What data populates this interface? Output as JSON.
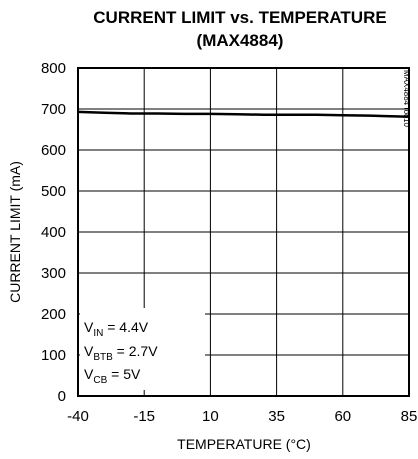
{
  "chart_data": {
    "type": "line",
    "title_line1": "CURRENT LIMIT vs. TEMPERATURE",
    "title_line2": "(MAX4884)",
    "xlabel": "TEMPERATURE (°C)",
    "ylabel": "CURRENT LIMIT (mA)",
    "xlim": [
      -40,
      85
    ],
    "ylim": [
      0,
      800
    ],
    "x_ticks": [
      -40,
      -15,
      10,
      35,
      60,
      85
    ],
    "y_ticks": [
      0,
      100,
      200,
      300,
      400,
      500,
      600,
      700,
      800
    ],
    "grid": true,
    "series": [
      {
        "x": [
          -40,
          -30,
          -20,
          -10,
          0,
          10,
          20,
          30,
          40,
          50,
          60,
          70,
          80,
          85
        ],
        "y": [
          693,
          691,
          689,
          689,
          688,
          688,
          687,
          686,
          686,
          686,
          685,
          684,
          682,
          681
        ]
      }
    ],
    "annotations": [
      {
        "main": "V",
        "sub": "IN",
        "rest": " = 4.4V"
      },
      {
        "main": "V",
        "sub": "BTB",
        "rest": " = 2.7V"
      },
      {
        "main": "V",
        "sub": "CB",
        "rest": " = 5V"
      }
    ],
    "watermark": "MAX4884 toc10"
  }
}
